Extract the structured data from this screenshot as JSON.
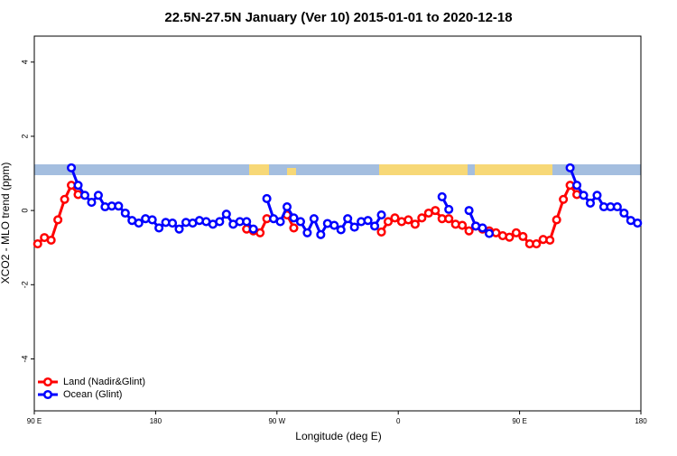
{
  "chart_data": {
    "type": "line",
    "title": "22.5N-27.5N January (Ver 10)   2015-01-01 to 2020-12-18",
    "x_label": "Longitude (deg E)",
    "y_label": "XCO2 - MLO trend (ppm)",
    "x": [
      92.5,
      97.5,
      102.5,
      107.5,
      112.5,
      117.5,
      122.5,
      127.5,
      132.5,
      137.5,
      142.5,
      147.5,
      152.5,
      157.5,
      162.5,
      167.5,
      172.5,
      177.5,
      182.5,
      187.5,
      192.5,
      197.5,
      202.5,
      207.5,
      212.5,
      217.5,
      222.5,
      227.5,
      232.5,
      237.5,
      242.5,
      247.5,
      252.5,
      257.5,
      262.5,
      267.5,
      272.5,
      277.5,
      282.5,
      287.5,
      292.5,
      297.5,
      302.5,
      307.5,
      312.5,
      317.5,
      322.5,
      327.5,
      332.5,
      337.5,
      342.5,
      347.5,
      352.5,
      357.5,
      362.5,
      367.5,
      372.5,
      377.5,
      382.5,
      387.5,
      392.5,
      397.5,
      402.5,
      407.5,
      412.5,
      417.5,
      422.5,
      427.5,
      432.5,
      437.5,
      442.5,
      447.5,
      452.5,
      457.5,
      462.5,
      467.5,
      472.5,
      477.5,
      482.5,
      487.5,
      492.5,
      497.5,
      502.5,
      507.5,
      512.5,
      517.5,
      522.5,
      527.5,
      532.5,
      537.5
    ],
    "series": [
      {
        "name": "Land (Nadir&Glint)",
        "color": "#ff0000",
        "values": [
          -0.9,
          -0.73,
          -0.8,
          -0.25,
          0.3,
          0.68,
          0.43,
          null,
          null,
          null,
          null,
          null,
          null,
          null,
          null,
          null,
          null,
          null,
          null,
          null,
          null,
          null,
          null,
          null,
          null,
          null,
          null,
          null,
          null,
          null,
          null,
          -0.5,
          -0.55,
          -0.6,
          -0.22,
          null,
          null,
          -0.12,
          -0.47,
          null,
          null,
          null,
          null,
          null,
          null,
          null,
          null,
          null,
          null,
          null,
          null,
          -0.58,
          -0.3,
          -0.2,
          -0.3,
          -0.25,
          -0.37,
          -0.2,
          -0.07,
          0.0,
          -0.22,
          -0.22,
          -0.37,
          -0.4,
          -0.55,
          -0.42,
          -0.5,
          -0.55,
          -0.6,
          -0.68,
          -0.72,
          -0.6,
          -0.7,
          -0.9,
          -0.9,
          -0.78,
          -0.8,
          -0.25,
          0.3,
          0.68,
          0.43,
          null,
          null,
          null,
          null,
          null,
          null,
          null,
          null,
          null
        ]
      },
      {
        "name": "Ocean (Glint)",
        "color": "#0000ff",
        "values": [
          null,
          null,
          null,
          null,
          null,
          1.15,
          0.68,
          0.41,
          0.22,
          0.41,
          0.1,
          0.12,
          0.12,
          -0.07,
          -0.27,
          -0.34,
          -0.22,
          -0.25,
          -0.47,
          -0.32,
          -0.34,
          -0.5,
          -0.32,
          -0.34,
          -0.27,
          -0.3,
          -0.37,
          -0.3,
          -0.1,
          -0.37,
          -0.3,
          -0.3,
          -0.5,
          null,
          0.32,
          -0.22,
          -0.3,
          0.1,
          -0.2,
          -0.3,
          -0.6,
          -0.22,
          -0.65,
          -0.35,
          -0.4,
          -0.52,
          -0.22,
          -0.45,
          -0.3,
          -0.27,
          -0.42,
          -0.12,
          null,
          null,
          null,
          null,
          null,
          null,
          null,
          null,
          0.37,
          0.03,
          null,
          null,
          0.0,
          -0.42,
          -0.47,
          -0.62,
          null,
          null,
          null,
          null,
          null,
          null,
          null,
          null,
          null,
          null,
          null,
          1.15,
          0.68,
          0.41,
          0.2,
          0.41,
          0.1,
          0.1,
          0.1,
          -0.07,
          -0.27,
          -0.34
        ]
      }
    ],
    "xlim": [
      90,
      540
    ],
    "xticks": [
      {
        "value": 90,
        "label": "90 E"
      },
      180,
      {
        "value": 270,
        "label": "90 W"
      },
      {
        "value": 360,
        "label": "0"
      },
      {
        "value": 450,
        "label": "90 E"
      },
      {
        "value": 540,
        "label": "180"
      }
    ],
    "ylim": [
      -5.4,
      4.7
    ],
    "yticks": [
      -4,
      -2,
      0,
      2,
      4
    ],
    "legend": "bottom-left"
  }
}
